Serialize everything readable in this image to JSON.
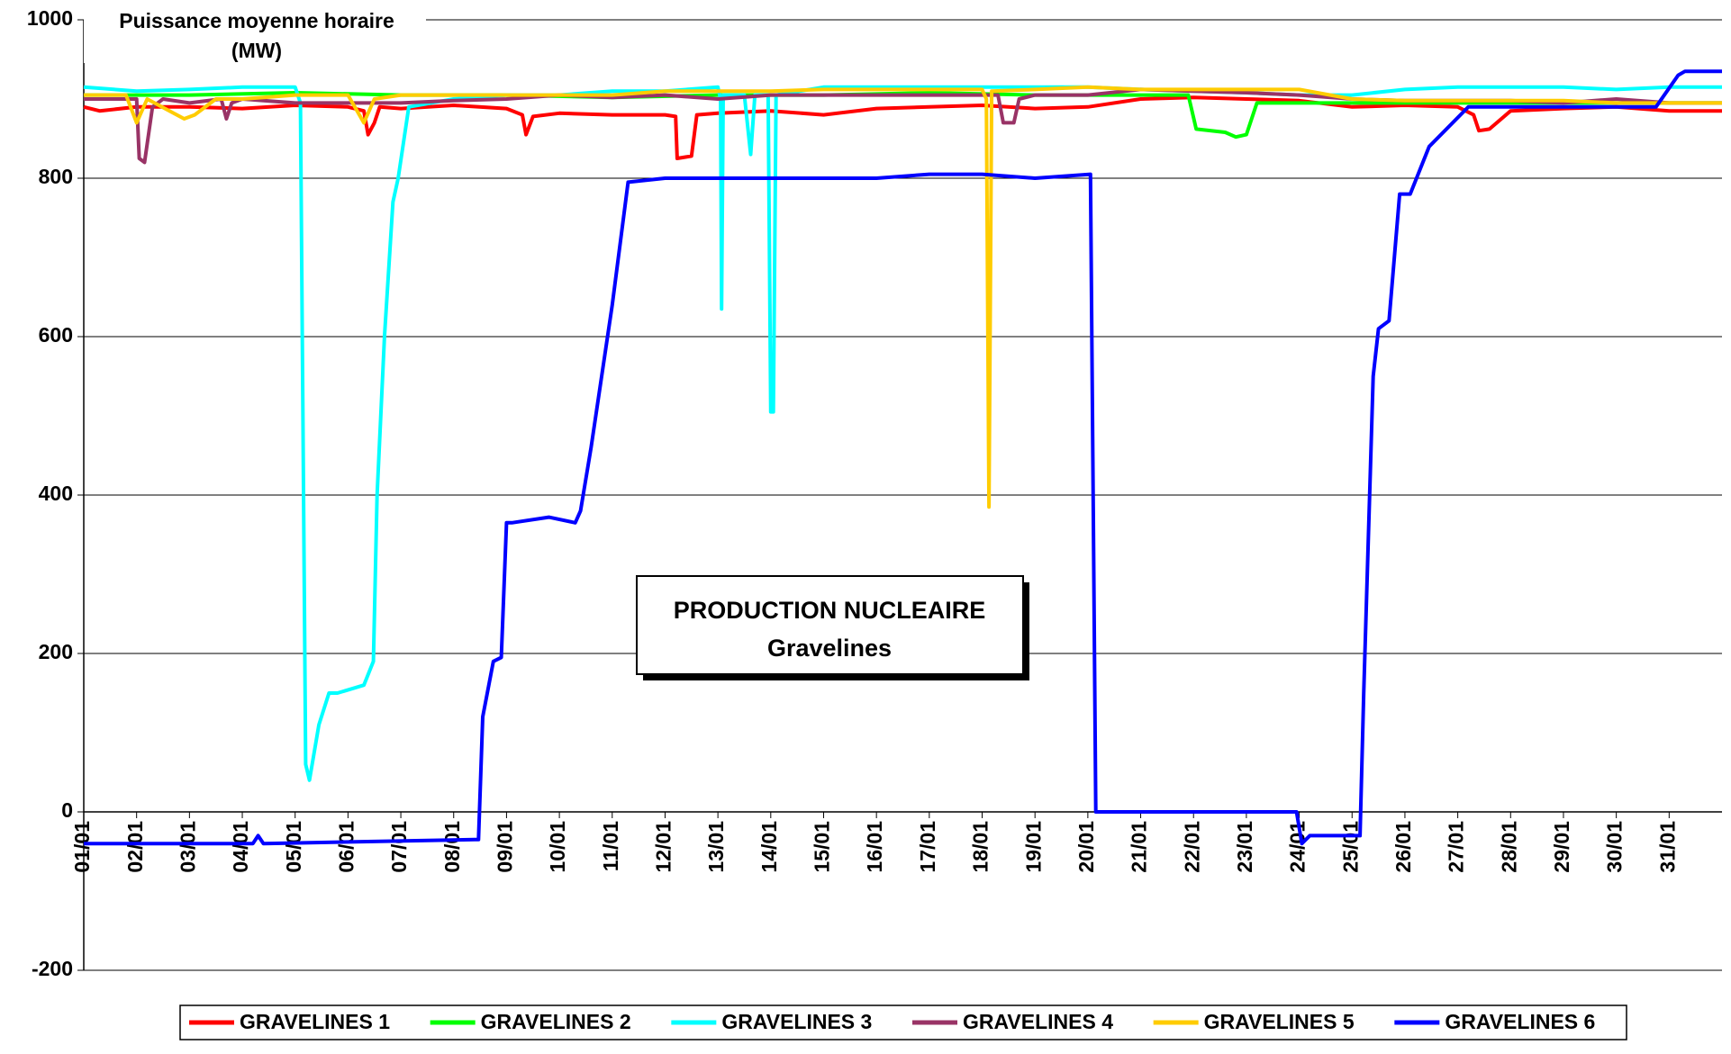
{
  "chart_data": {
    "type": "line",
    "y_axis_label": "Puissance moyenne horaire",
    "y_axis_unit": "(MW)",
    "annotation": [
      "PRODUCTION NUCLEAIRE",
      "Gravelines"
    ],
    "xlim": [
      1,
      32
    ],
    "ylim": [
      -200,
      1000
    ],
    "yticks": [
      -200,
      0,
      200,
      400,
      600,
      800,
      1000
    ],
    "grid": true,
    "legend": "bottom",
    "xticks": [
      {
        "value": 1,
        "label": "01/01"
      },
      {
        "value": 2,
        "label": "02/01"
      },
      {
        "value": 3,
        "label": "03/01"
      },
      {
        "value": 4,
        "label": "04/01"
      },
      {
        "value": 5,
        "label": "05/01"
      },
      {
        "value": 6,
        "label": "06/01"
      },
      {
        "value": 7,
        "label": "07/01"
      },
      {
        "value": 8,
        "label": "08/01"
      },
      {
        "value": 9,
        "label": "09/01"
      },
      {
        "value": 10,
        "label": "10/01"
      },
      {
        "value": 11,
        "label": "11/01"
      },
      {
        "value": 12,
        "label": "12/01"
      },
      {
        "value": 13,
        "label": "13/01"
      },
      {
        "value": 14,
        "label": "14/01"
      },
      {
        "value": 15,
        "label": "15/01"
      },
      {
        "value": 16,
        "label": "16/01"
      },
      {
        "value": 17,
        "label": "17/01"
      },
      {
        "value": 18,
        "label": "18/01"
      },
      {
        "value": 19,
        "label": "19/01"
      },
      {
        "value": 20,
        "label": "20/01"
      },
      {
        "value": 21,
        "label": "21/01"
      },
      {
        "value": 22,
        "label": "22/01"
      },
      {
        "value": 23,
        "label": "23/01"
      },
      {
        "value": 24,
        "label": "24/01"
      },
      {
        "value": 25,
        "label": "25/01"
      },
      {
        "value": 26,
        "label": "26/01"
      },
      {
        "value": 27,
        "label": "27/01"
      },
      {
        "value": 28,
        "label": "28/01"
      },
      {
        "value": 29,
        "label": "29/01"
      },
      {
        "value": 30,
        "label": "30/01"
      },
      {
        "value": 31,
        "label": "31/01"
      }
    ],
    "series": [
      {
        "name": "GRAVELINES 1",
        "color": "#ff0000",
        "x": [
          1,
          1.3,
          2,
          3,
          4,
          5,
          6,
          6.3,
          6.38,
          6.5,
          6.6,
          7,
          8,
          9,
          9.3,
          9.37,
          9.5,
          10,
          11,
          12,
          12.2,
          12.23,
          12.5,
          12.6,
          13,
          14,
          15,
          16,
          17,
          18,
          19,
          20,
          21,
          22,
          23,
          24,
          25,
          26,
          27,
          27.3,
          27.4,
          27.6,
          28,
          29,
          30,
          31,
          32
        ],
        "values": [
          890,
          885,
          890,
          890,
          888,
          892,
          890,
          885,
          855,
          870,
          890,
          888,
          892,
          888,
          880,
          855,
          878,
          882,
          880,
          880,
          878,
          825,
          828,
          880,
          882,
          885,
          880,
          888,
          890,
          892,
          888,
          890,
          900,
          902,
          900,
          898,
          890,
          892,
          890,
          880,
          860,
          862,
          885,
          888,
          890,
          885,
          885
        ]
      },
      {
        "name": "GRAVELINES 2",
        "color": "#00ff00",
        "x": [
          1,
          3,
          5,
          7,
          9,
          11,
          13,
          15,
          17,
          19,
          21,
          21.9,
          22.05,
          22.6,
          22.8,
          23.0,
          23.2,
          24,
          26,
          28,
          30,
          32
        ],
        "values": [
          905,
          905,
          908,
          905,
          905,
          902,
          905,
          905,
          908,
          905,
          905,
          905,
          862,
          858,
          852,
          855,
          895,
          895,
          895,
          895,
          895,
          895
        ]
      },
      {
        "name": "GRAVELINES 3",
        "color": "#00ffff",
        "x": [
          1,
          2,
          3,
          4,
          5,
          5.1,
          5.2,
          5.27,
          5.45,
          5.64,
          5.8,
          6.3,
          6.48,
          6.55,
          6.69,
          6.85,
          6.95,
          7.15,
          8,
          9,
          10,
          11,
          12,
          13,
          13.05,
          13.07,
          13.1,
          13.5,
          13.62,
          13.7,
          13.95,
          14.0,
          14.05,
          14.1,
          15,
          16,
          17,
          18,
          19,
          20,
          21,
          22,
          23,
          24,
          25,
          26,
          27,
          28,
          29,
          30,
          31,
          32
        ],
        "values": [
          915,
          910,
          912,
          915,
          915,
          895,
          60,
          40,
          110,
          150,
          150,
          160,
          190,
          400,
          600,
          770,
          800,
          890,
          900,
          905,
          905,
          910,
          910,
          915,
          900,
          635,
          905,
          905,
          830,
          905,
          905,
          505,
          505,
          905,
          915,
          915,
          915,
          915,
          915,
          915,
          912,
          910,
          908,
          905,
          905,
          912,
          915,
          915,
          915,
          912,
          915,
          915
        ]
      },
      {
        "name": "GRAVELINES 4",
        "color": "#993366",
        "x": [
          1,
          2,
          2.05,
          2.15,
          2.3,
          2.5,
          3,
          3.6,
          3.7,
          3.8,
          4,
          5,
          6,
          7,
          8,
          9,
          10,
          11,
          12,
          13,
          14,
          15,
          16,
          17,
          18,
          18.3,
          18.4,
          18.6,
          18.7,
          19,
          20,
          21,
          22,
          23,
          24,
          25,
          26,
          27,
          28,
          29,
          30,
          31,
          32
        ],
        "values": [
          900,
          900,
          825,
          820,
          890,
          900,
          895,
          900,
          875,
          895,
          900,
          895,
          895,
          895,
          898,
          900,
          905,
          902,
          905,
          900,
          905,
          905,
          905,
          905,
          905,
          905,
          870,
          870,
          900,
          905,
          905,
          912,
          910,
          908,
          905,
          900,
          898,
          898,
          898,
          895,
          900,
          895,
          895
        ]
      },
      {
        "name": "GRAVELINES 5",
        "color": "#ffcc00",
        "x": [
          1,
          1.8,
          2.0,
          2.2,
          2.9,
          3.1,
          3.5,
          4,
          5,
          6,
          6.3,
          6.5,
          7,
          8,
          9,
          10,
          11,
          12,
          13,
          14,
          15,
          16,
          17,
          18,
          18.08,
          18.13,
          18.18,
          19,
          20,
          21,
          22,
          23,
          24,
          25,
          26,
          27,
          28,
          29,
          30,
          31,
          32
        ],
        "values": [
          905,
          905,
          870,
          900,
          875,
          880,
          900,
          900,
          905,
          905,
          870,
          900,
          905,
          905,
          905,
          905,
          905,
          910,
          910,
          910,
          912,
          912,
          912,
          912,
          900,
          385,
          910,
          912,
          915,
          912,
          912,
          912,
          912,
          900,
          898,
          898,
          898,
          898,
          895,
          895,
          895
        ]
      },
      {
        "name": "GRAVELINES 6",
        "color": "#0000ff",
        "x": [
          1,
          4.2,
          4.3,
          4.4,
          8.4,
          8.47,
          8.55,
          8.75,
          8.9,
          9.0,
          9.1,
          9.8,
          10.3,
          10.4,
          10.6,
          11.0,
          11.3,
          12,
          13,
          14,
          15,
          16,
          17,
          18,
          19,
          20.05,
          20.15,
          23.95,
          24.05,
          24.2,
          25.1,
          25.15,
          25.22,
          25.4,
          25.5,
          25.7,
          25.9,
          26.1,
          26.46,
          27.2,
          28,
          29,
          30,
          30.75,
          31.17,
          31.3,
          32
        ],
        "values": [
          -40,
          -40,
          -30,
          -40,
          -35,
          -35,
          120,
          190,
          195,
          365,
          365,
          372,
          365,
          380,
          460,
          640,
          795,
          800,
          800,
          800,
          800,
          800,
          805,
          805,
          800,
          805,
          0,
          0,
          -40,
          -30,
          -30,
          -30,
          150,
          550,
          610,
          620,
          780,
          780,
          840,
          890,
          890,
          890,
          890,
          890,
          930,
          935,
          935
        ]
      }
    ]
  }
}
